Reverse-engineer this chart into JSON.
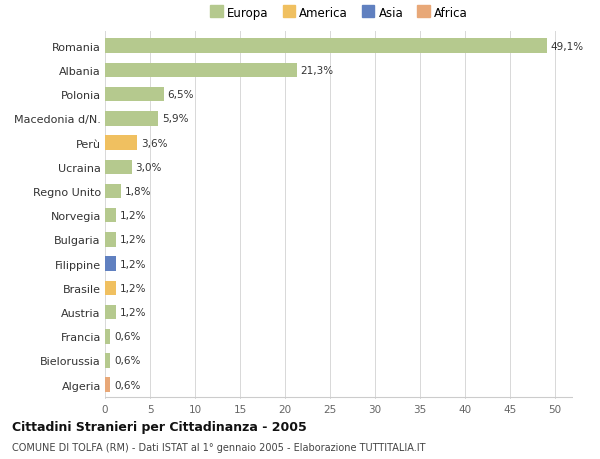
{
  "countries": [
    "Romania",
    "Albania",
    "Polonia",
    "Macedonia d/N.",
    "Perù",
    "Ucraina",
    "Regno Unito",
    "Norvegia",
    "Bulgaria",
    "Filippine",
    "Brasile",
    "Austria",
    "Francia",
    "Bielorussia",
    "Algeria"
  ],
  "values": [
    49.1,
    21.3,
    6.5,
    5.9,
    3.6,
    3.0,
    1.8,
    1.2,
    1.2,
    1.2,
    1.2,
    1.2,
    0.6,
    0.6,
    0.6
  ],
  "labels": [
    "49,1%",
    "21,3%",
    "6,5%",
    "5,9%",
    "3,6%",
    "3,0%",
    "1,8%",
    "1,2%",
    "1,2%",
    "1,2%",
    "1,2%",
    "1,2%",
    "0,6%",
    "0,6%",
    "0,6%"
  ],
  "colors": [
    "#b5c98e",
    "#b5c98e",
    "#b5c98e",
    "#b5c98e",
    "#f0c060",
    "#b5c98e",
    "#b5c98e",
    "#b5c98e",
    "#b5c98e",
    "#6080c0",
    "#f0c060",
    "#b5c98e",
    "#b5c98e",
    "#b5c98e",
    "#e8a878"
  ],
  "legend": [
    {
      "label": "Europa",
      "color": "#b5c98e"
    },
    {
      "label": "America",
      "color": "#f0c060"
    },
    {
      "label": "Asia",
      "color": "#6080c0"
    },
    {
      "label": "Africa",
      "color": "#e8a878"
    }
  ],
  "title": "Cittadini Stranieri per Cittadinanza - 2005",
  "subtitle": "COMUNE DI TOLFA (RM) - Dati ISTAT al 1° gennaio 2005 - Elaborazione TUTTITALIA.IT",
  "xlim": [
    0,
    52
  ],
  "xticks": [
    0,
    5,
    10,
    15,
    20,
    25,
    30,
    35,
    40,
    45,
    50
  ],
  "background_color": "#ffffff",
  "grid_color": "#d8d8d8"
}
